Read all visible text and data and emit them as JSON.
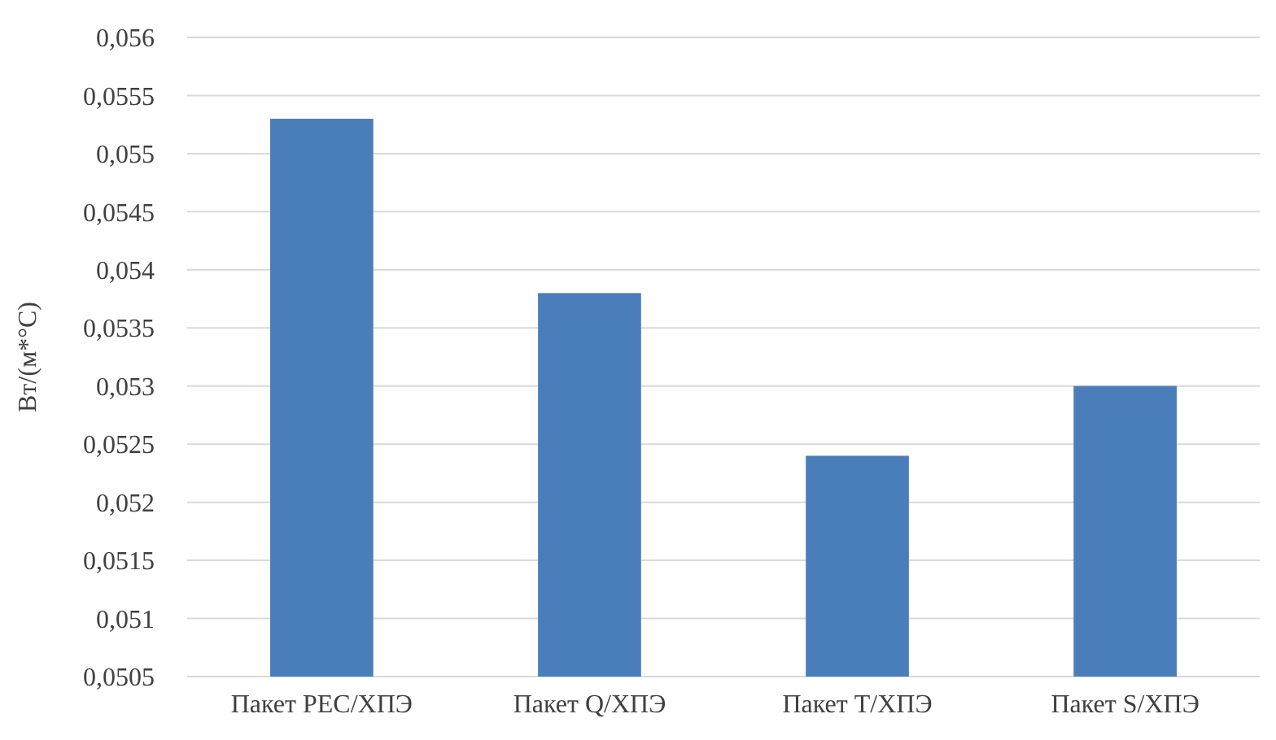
{
  "chart_data": {
    "type": "bar",
    "ylabel": "Вт/(м*°С)",
    "categories": [
      "Пакет PEC/ХПЭ",
      "Пакет Q/ХПЭ",
      "Пакет T/ХПЭ",
      "Пакет S/ХПЭ"
    ],
    "values": [
      0.0553,
      0.0538,
      0.0524,
      0.053
    ],
    "color": "#4a7ebb",
    "ylim": [
      0.0505,
      0.056
    ],
    "yticks": [
      {
        "value": 0.0505,
        "label": "0,0505"
      },
      {
        "value": 0.051,
        "label": "0,051"
      },
      {
        "value": 0.0515,
        "label": "0,0515"
      },
      {
        "value": 0.052,
        "label": "0,052"
      },
      {
        "value": 0.0525,
        "label": "0,0525"
      },
      {
        "value": 0.053,
        "label": "0,053"
      },
      {
        "value": 0.0535,
        "label": "0,0535"
      },
      {
        "value": 0.054,
        "label": "0,054"
      },
      {
        "value": 0.0545,
        "label": "0,0545"
      },
      {
        "value": 0.055,
        "label": "0,055"
      },
      {
        "value": 0.0555,
        "label": "0,0555"
      },
      {
        "value": 0.056,
        "label": "0,056"
      }
    ],
    "grid": "y"
  }
}
